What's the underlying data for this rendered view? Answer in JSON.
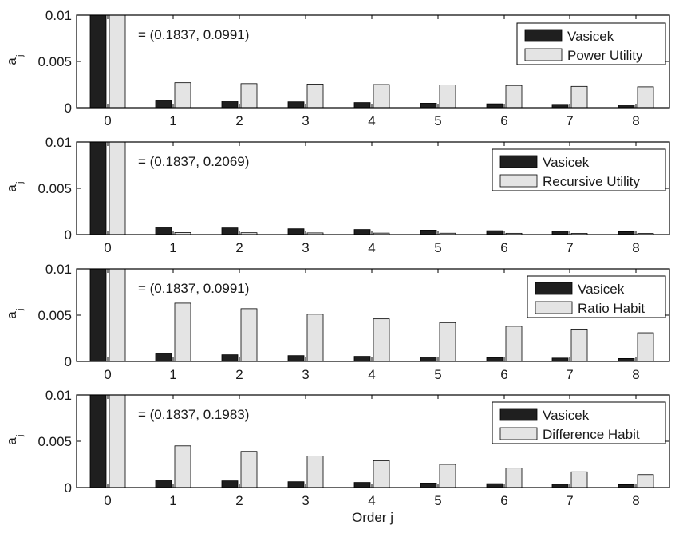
{
  "colors": {
    "vasicek": "#1f1f1f",
    "model": "#e4e4e4",
    "axis": "#000000",
    "background": "#ffffff"
  },
  "xlabel": "Order j",
  "chart_data": [
    {
      "type": "bar",
      "ylabel": "a_j",
      "annotation": "= (0.1837, 0.0991)",
      "categories": [
        "0",
        "1",
        "2",
        "3",
        "4",
        "5",
        "6",
        "7",
        "8"
      ],
      "ylim": [
        0,
        0.01
      ],
      "yticks": [
        "0",
        "0.005",
        "0.01"
      ],
      "legend_position": "top-right",
      "series": [
        {
          "name": "Vasicek",
          "values": [
            0.0123,
            0.00082,
            0.00072,
            0.00063,
            0.00055,
            0.00048,
            0.00042,
            0.00036,
            0.00031
          ]
        },
        {
          "name": "Power Utility",
          "values": [
            0.0123,
            0.0027,
            0.0026,
            0.00255,
            0.0025,
            0.00245,
            0.0024,
            0.0023,
            0.00225
          ]
        }
      ]
    },
    {
      "type": "bar",
      "ylabel": "a_j",
      "annotation": "= (0.1837, 0.2069)",
      "categories": [
        "0",
        "1",
        "2",
        "3",
        "4",
        "5",
        "6",
        "7",
        "8"
      ],
      "ylim": [
        0,
        0.01
      ],
      "yticks": [
        "0",
        "0.005",
        "0.01"
      ],
      "legend_position": "top-right",
      "series": [
        {
          "name": "Vasicek",
          "values": [
            0.0123,
            0.00082,
            0.00072,
            0.00063,
            0.00055,
            0.00048,
            0.00042,
            0.00036,
            0.00031
          ]
        },
        {
          "name": "Recursive Utility",
          "values": [
            0.0123,
            0.00022,
            0.0002,
            0.00018,
            0.00016,
            0.00015,
            0.00014,
            0.00013,
            0.00012
          ]
        }
      ]
    },
    {
      "type": "bar",
      "ylabel": "a_j",
      "annotation": "= (0.1837, 0.0991)",
      "categories": [
        "0",
        "1",
        "2",
        "3",
        "4",
        "5",
        "6",
        "7",
        "8"
      ],
      "ylim": [
        0,
        0.01
      ],
      "yticks": [
        "0",
        "0.005",
        "0.01"
      ],
      "legend_position": "top-right",
      "series": [
        {
          "name": "Vasicek",
          "values": [
            0.0123,
            0.00082,
            0.00072,
            0.00063,
            0.00055,
            0.00048,
            0.00042,
            0.00036,
            0.00031
          ]
        },
        {
          "name": "Ratio Habit",
          "values": [
            0.0123,
            0.0063,
            0.0057,
            0.0051,
            0.0046,
            0.0042,
            0.0038,
            0.0035,
            0.0031
          ]
        }
      ]
    },
    {
      "type": "bar",
      "ylabel": "a_j",
      "annotation": "= (0.1837, 0.1983)",
      "categories": [
        "0",
        "1",
        "2",
        "3",
        "4",
        "5",
        "6",
        "7",
        "8"
      ],
      "ylim": [
        0,
        0.01
      ],
      "yticks": [
        "0",
        "0.005",
        "0.01"
      ],
      "legend_position": "top-right",
      "series": [
        {
          "name": "Vasicek",
          "values": [
            0.0123,
            0.00082,
            0.00072,
            0.00063,
            0.00055,
            0.00048,
            0.00042,
            0.00036,
            0.00031
          ]
        },
        {
          "name": "Difference Habit",
          "values": [
            0.0123,
            0.0045,
            0.0039,
            0.0034,
            0.0029,
            0.0025,
            0.0021,
            0.0017,
            0.0014
          ]
        }
      ]
    }
  ]
}
